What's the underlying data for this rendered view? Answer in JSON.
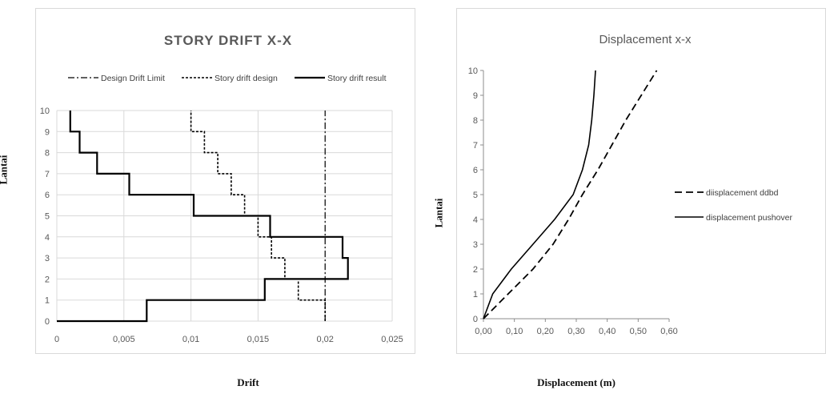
{
  "chart_data": [
    {
      "type": "line",
      "title": "STORY DRIFT X-X",
      "xlabel": "Drift",
      "ylabel": "Lantai",
      "xlim": [
        0,
        0.025
      ],
      "ylim": [
        0,
        10
      ],
      "x_ticks": [
        "0",
        "0,005",
        "0,01",
        "0,015",
        "0,02",
        "0,025"
      ],
      "y_ticks": [
        "0",
        "1",
        "2",
        "3",
        "4",
        "5",
        "6",
        "7",
        "8",
        "9",
        "10"
      ],
      "grid": true,
      "legend_position": "top",
      "series": [
        {
          "name": "Design Drift Limit",
          "style": "dashdot",
          "color": "#000000",
          "points": [
            [
              0.02,
              0
            ],
            [
              0.02,
              10
            ]
          ]
        },
        {
          "name": "Story drift design",
          "style": "dotted",
          "color": "#000000",
          "points": [
            [
              0.02,
              0
            ],
            [
              0.02,
              1
            ],
            [
              0.018,
              1
            ],
            [
              0.018,
              2
            ],
            [
              0.017,
              2
            ],
            [
              0.017,
              3
            ],
            [
              0.016,
              3
            ],
            [
              0.016,
              4
            ],
            [
              0.015,
              4
            ],
            [
              0.015,
              5
            ],
            [
              0.014,
              5
            ],
            [
              0.014,
              6
            ],
            [
              0.013,
              6
            ],
            [
              0.013,
              7
            ],
            [
              0.012,
              7
            ],
            [
              0.012,
              8
            ],
            [
              0.011,
              8
            ],
            [
              0.011,
              9
            ],
            [
              0.01,
              9
            ],
            [
              0.01,
              10
            ]
          ]
        },
        {
          "name": "Story drift result",
          "style": "solid",
          "color": "#000000",
          "points": [
            [
              0,
              0
            ],
            [
              0.0067,
              0
            ],
            [
              0.0067,
              1
            ],
            [
              0.0155,
              1
            ],
            [
              0.0155,
              2
            ],
            [
              0.0217,
              2
            ],
            [
              0.0217,
              3
            ],
            [
              0.0213,
              3
            ],
            [
              0.0213,
              4
            ],
            [
              0.0159,
              4
            ],
            [
              0.0159,
              5
            ],
            [
              0.0102,
              5
            ],
            [
              0.0102,
              6
            ],
            [
              0.0054,
              6
            ],
            [
              0.0054,
              7
            ],
            [
              0.003,
              7
            ],
            [
              0.003,
              8
            ],
            [
              0.0017,
              8
            ],
            [
              0.0017,
              9
            ],
            [
              0.001,
              9
            ],
            [
              0.001,
              10
            ]
          ]
        }
      ]
    },
    {
      "type": "line",
      "title": "Displacement x-x",
      "xlabel": "Displacement (m)",
      "ylabel": "Lantai",
      "xlim": [
        0,
        0.6
      ],
      "ylim": [
        0,
        10
      ],
      "x_ticks": [
        "0,00",
        "0,10",
        "0,20",
        "0,30",
        "0,40",
        "0,50",
        "0,60"
      ],
      "y_ticks": [
        "0",
        "1",
        "2",
        "3",
        "4",
        "5",
        "6",
        "7",
        "8",
        "9",
        "10"
      ],
      "grid": false,
      "legend_position": "right",
      "series": [
        {
          "name": "diisplacement ddbd",
          "style": "dashed",
          "color": "#000000",
          "points": [
            [
              0,
              0
            ],
            [
              0.08,
              1
            ],
            [
              0.16,
              2
            ],
            [
              0.225,
              3
            ],
            [
              0.275,
              4
            ],
            [
              0.32,
              5
            ],
            [
              0.37,
              6
            ],
            [
              0.415,
              7
            ],
            [
              0.46,
              8
            ],
            [
              0.51,
              9
            ],
            [
              0.56,
              10
            ]
          ]
        },
        {
          "name": "displacement pushover",
          "style": "solid",
          "color": "#000000",
          "points": [
            [
              0,
              0
            ],
            [
              0.03,
              1
            ],
            [
              0.09,
              2
            ],
            [
              0.16,
              3
            ],
            [
              0.23,
              4
            ],
            [
              0.29,
              5
            ],
            [
              0.32,
              6
            ],
            [
              0.34,
              7
            ],
            [
              0.35,
              8
            ],
            [
              0.357,
              9
            ],
            [
              0.362,
              10
            ]
          ]
        }
      ]
    }
  ]
}
